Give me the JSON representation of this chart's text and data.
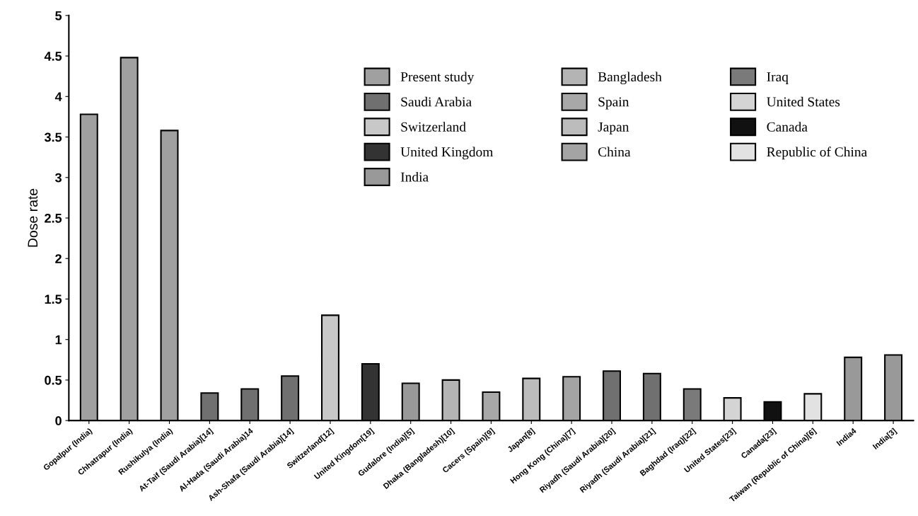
{
  "chart_data": {
    "type": "bar",
    "ylabel": "Dose rate",
    "categories": [
      "Gopalpur (India)",
      "Chhatrapur (India)",
      "Rushikulya (India)",
      "At-Taif (Saudi Arabia)[14]",
      "Al-Hada (Saudi Arabia)14",
      "Ash-Shafa (Saudi Arabia)[14]",
      "Switzerland[12]",
      "United Kingdom[19]",
      "Gudalore (India)[5]",
      "Dhaka (Bangladesh)[10]",
      "Cacers (Spain)[9]",
      "Japan[8]",
      "Hong Kong (China)[7]",
      "Riyadh (Saudi Arabia)[20]",
      "Riyadh (Saudi Arabia)[21]",
      "Baghdad (Iraq)[22]",
      "United States[23]",
      "Canada[23]",
      "Taiwan (Republic of China)[6]",
      "India4",
      "India[3]"
    ],
    "series": [
      {
        "name": "Present study",
        "color": "#a0a0a0",
        "values": [
          3.78,
          4.48,
          3.58,
          null,
          null,
          null,
          null,
          null,
          null,
          null,
          null,
          null,
          null,
          null,
          null,
          null,
          null,
          null,
          null,
          null,
          null
        ]
      },
      {
        "name": "Saudi Arabia",
        "color": "#707070",
        "values": [
          null,
          null,
          null,
          0.34,
          0.39,
          0.55,
          null,
          null,
          null,
          null,
          null,
          null,
          null,
          0.61,
          0.58,
          null,
          null,
          null,
          null,
          null,
          null
        ]
      },
      {
        "name": "Switzerland",
        "color": "#c8c8c8",
        "values": [
          null,
          null,
          null,
          null,
          null,
          null,
          1.3,
          null,
          null,
          null,
          null,
          null,
          null,
          null,
          null,
          null,
          null,
          null,
          null,
          null,
          null
        ]
      },
      {
        "name": "United Kingdom",
        "color": "#333333",
        "values": [
          null,
          null,
          null,
          null,
          null,
          null,
          null,
          0.7,
          null,
          null,
          null,
          null,
          null,
          null,
          null,
          null,
          null,
          null,
          null,
          null,
          null
        ]
      },
      {
        "name": "India",
        "color": "#999999",
        "values": [
          null,
          null,
          null,
          null,
          null,
          null,
          null,
          null,
          0.46,
          null,
          null,
          null,
          null,
          null,
          null,
          null,
          null,
          null,
          null,
          0.78,
          0.81
        ]
      },
      {
        "name": "Bangladesh",
        "color": "#b4b4b4",
        "values": [
          null,
          null,
          null,
          null,
          null,
          null,
          null,
          null,
          null,
          0.5,
          null,
          null,
          null,
          null,
          null,
          null,
          null,
          null,
          null,
          null,
          null
        ]
      },
      {
        "name": "Spain",
        "color": "#a8a8a8",
        "values": [
          null,
          null,
          null,
          null,
          null,
          null,
          null,
          null,
          null,
          null,
          0.35,
          null,
          null,
          null,
          null,
          null,
          null,
          null,
          null,
          null,
          null
        ]
      },
      {
        "name": "Japan",
        "color": "#bcbcbc",
        "values": [
          null,
          null,
          null,
          null,
          null,
          null,
          null,
          null,
          null,
          null,
          null,
          0.52,
          null,
          null,
          null,
          null,
          null,
          null,
          null,
          null,
          null
        ]
      },
      {
        "name": "China",
        "color": "#a4a4a4",
        "values": [
          null,
          null,
          null,
          null,
          null,
          null,
          null,
          null,
          null,
          null,
          null,
          null,
          0.54,
          null,
          null,
          null,
          null,
          null,
          null,
          null,
          null
        ]
      },
      {
        "name": "Iraq",
        "color": "#7a7a7a",
        "values": [
          null,
          null,
          null,
          null,
          null,
          null,
          null,
          null,
          null,
          null,
          null,
          null,
          null,
          null,
          null,
          0.39,
          null,
          null,
          null,
          null,
          null
        ]
      },
      {
        "name": "United States",
        "color": "#d4d4d4",
        "values": [
          null,
          null,
          null,
          null,
          null,
          null,
          null,
          null,
          null,
          null,
          null,
          null,
          null,
          null,
          null,
          null,
          0.28,
          null,
          null,
          null,
          null
        ]
      },
      {
        "name": "Canada",
        "color": "#111111",
        "values": [
          null,
          null,
          null,
          null,
          null,
          null,
          null,
          null,
          null,
          null,
          null,
          null,
          null,
          null,
          null,
          null,
          null,
          0.23,
          null,
          null,
          null
        ]
      },
      {
        "name": "Republic of China",
        "color": "#e2e2e2",
        "values": [
          null,
          null,
          null,
          null,
          null,
          null,
          null,
          null,
          null,
          null,
          null,
          null,
          null,
          null,
          null,
          null,
          null,
          null,
          0.33,
          null,
          null
        ]
      }
    ],
    "ylim": [
      0,
      5
    ],
    "yticks": [
      0,
      0.5,
      1,
      1.5,
      2,
      2.5,
      3,
      3.5,
      4,
      4.5,
      5
    ],
    "grid": false,
    "legend": "top right"
  }
}
